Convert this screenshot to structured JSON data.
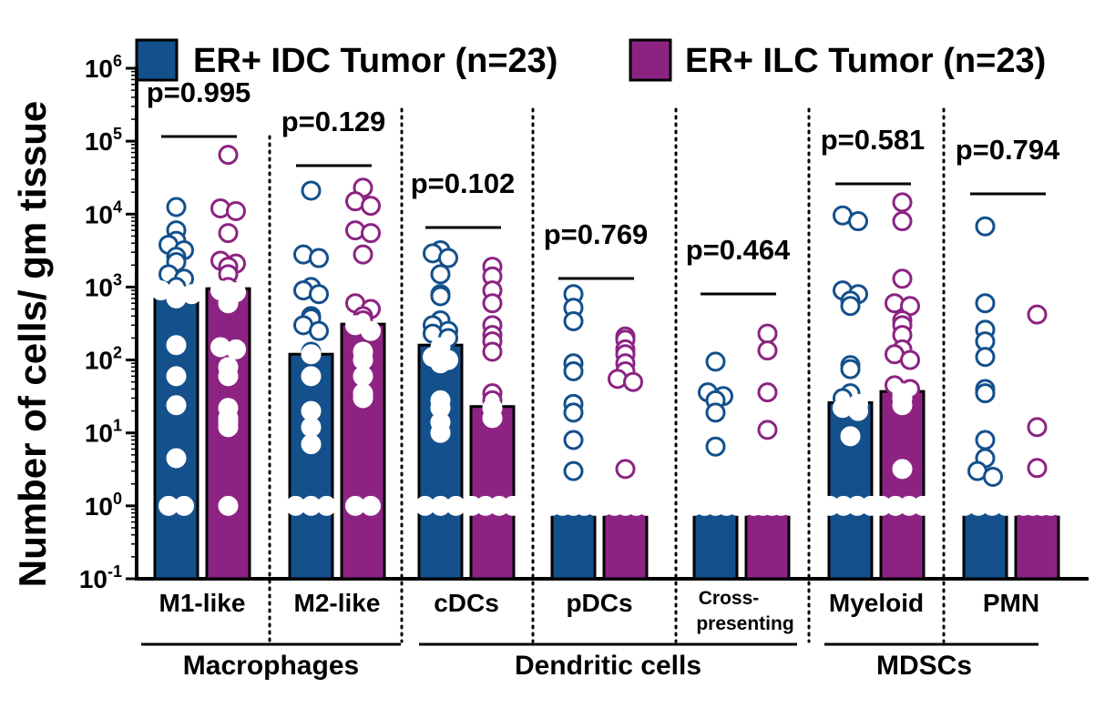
{
  "chart_data": {
    "type": "bar",
    "scale": "log",
    "ylabel": "Number of cells/ gm tissue",
    "yticks": [
      {
        "base": "10",
        "exp": "6",
        "value": 1000000
      },
      {
        "base": "10",
        "exp": "5",
        "value": 100000
      },
      {
        "base": "10",
        "exp": "4",
        "value": 10000
      },
      {
        "base": "10",
        "exp": "3",
        "value": 1000
      },
      {
        "base": "10",
        "exp": "2",
        "value": 100
      },
      {
        "base": "10",
        "exp": "1",
        "value": 10
      },
      {
        "base": "10",
        "exp": "0",
        "value": 1
      },
      {
        "base": "10",
        "exp": "-1",
        "value": 0.1
      }
    ],
    "ylim": [
      0.1,
      1000000
    ],
    "legend_position": "top",
    "series": [
      {
        "name": "ER+ IDC Tumor (n=23)",
        "color": "#13508c"
      },
      {
        "name": "ER+ ILC Tumor (n=23)",
        "color": "#8c2382"
      }
    ],
    "categories": [
      {
        "label": "M1-like",
        "p": "p=0.995",
        "bars": [
          900,
          950
        ],
        "points": [
          [
            12500,
            6000,
            4300,
            3800,
            3200,
            2600,
            2200,
            1500,
            1300,
            1000,
            900,
            850,
            800,
            700,
            160,
            60,
            24,
            4.5,
            1,
            1
          ],
          [
            65000,
            12000,
            11000,
            5500,
            2300,
            2100,
            1900,
            1500,
            1000,
            900,
            850,
            600,
            150,
            140,
            80,
            60,
            22,
            16,
            14,
            12,
            1
          ]
        ]
      },
      {
        "label": "M2-like",
        "p": "p=0.129",
        "bars": [
          120,
          310
        ],
        "points": [
          [
            21000,
            2800,
            2500,
            1000,
            900,
            800,
            400,
            370,
            300,
            250,
            130,
            120,
            60,
            20,
            12,
            7,
            1,
            1,
            1
          ],
          [
            23000,
            15000,
            13000,
            6000,
            5500,
            2800,
            600,
            500,
            400,
            350,
            300,
            250,
            130,
            100,
            60,
            35,
            30,
            1,
            1
          ]
        ]
      },
      {
        "label": "cDCs",
        "p": "p=0.102",
        "bars": [
          160,
          23
        ],
        "points": [
          [
            3200,
            2900,
            2500,
            1500,
            800,
            750,
            350,
            300,
            250,
            230,
            200,
            150,
            110,
            100,
            90,
            28,
            22,
            14,
            10,
            1,
            1,
            1
          ],
          [
            1900,
            1400,
            900,
            600,
            300,
            220,
            180,
            130,
            35,
            28,
            22,
            16,
            1,
            1,
            1,
            1
          ]
        ]
      },
      {
        "label": "pDCs",
        "p": "p=0.769",
        "bars": [
          1,
          1
        ],
        "points": [
          [
            800,
            520,
            340,
            90,
            70,
            25,
            19,
            8,
            3,
            1,
            1,
            1,
            1,
            1
          ],
          [
            210,
            190,
            140,
            120,
            90,
            70,
            55,
            50,
            3.2,
            1,
            1,
            1,
            1,
            1
          ]
        ]
      },
      {
        "label": "Cross-",
        "label2": "presenting",
        "p": "p=0.464",
        "bars": [
          1,
          1
        ],
        "points": [
          [
            95,
            36,
            32,
            28,
            19,
            6.5,
            1,
            1,
            1,
            1,
            1
          ],
          [
            230,
            135,
            36,
            11,
            1,
            1,
            1,
            1,
            1,
            1
          ]
        ]
      },
      {
        "label": "Myeloid",
        "p": "p=0.581",
        "bars": [
          26,
          37
        ],
        "points": [
          [
            9600,
            8000,
            900,
            800,
            650,
            550,
            85,
            75,
            35,
            30,
            25,
            22,
            20,
            9,
            1,
            1,
            1,
            1
          ],
          [
            14500,
            8000,
            1300,
            600,
            550,
            350,
            300,
            220,
            140,
            120,
            100,
            45,
            40,
            35,
            30,
            24,
            3.2,
            1,
            1,
            1,
            1
          ]
        ]
      },
      {
        "label": "PMN",
        "p": "p=0.794",
        "bars": [
          1,
          1
        ],
        "points": [
          [
            6800,
            600,
            260,
            180,
            110,
            40,
            35,
            8,
            4.5,
            3,
            2.5,
            1,
            1,
            1,
            1
          ],
          [
            420,
            12,
            3.3,
            1,
            1,
            1,
            1,
            1,
            1
          ]
        ]
      }
    ],
    "groups": [
      {
        "label": "Macrophages",
        "from": 0,
        "to": 1
      },
      {
        "label": "Dendritic cells",
        "from": 2,
        "to": 4
      },
      {
        "label": "MDSCs",
        "from": 5,
        "to": 6
      }
    ]
  }
}
